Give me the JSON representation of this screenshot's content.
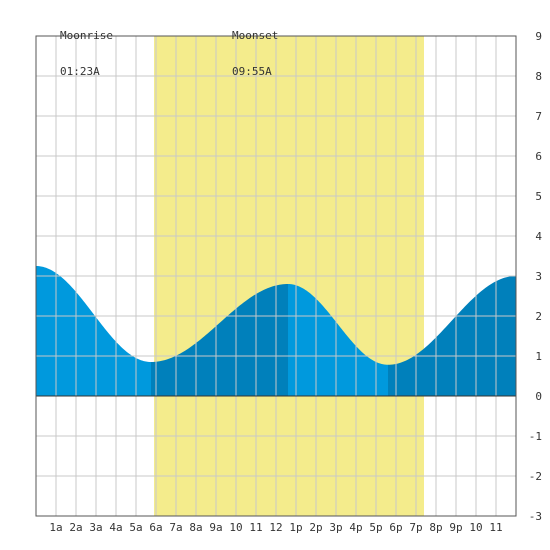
{
  "moon": {
    "rise_label": "Moonrise",
    "rise_time": "01:23A",
    "set_label": "Moonset",
    "set_time": "09:55A"
  },
  "colors": {
    "daylight": "#f4ec8c",
    "tide_light": "#0099dd",
    "tide_dark": "#0080bb",
    "grid": "#c8c8c8",
    "frame": "#555555"
  },
  "chart_data": {
    "type": "area",
    "title": "",
    "xlabel": "",
    "ylabel": "",
    "xlim": [
      0,
      24
    ],
    "ylim": [
      -3,
      9
    ],
    "grid": true,
    "x_ticks": [
      {
        "h": 1,
        "label": "1a"
      },
      {
        "h": 2,
        "label": "2a"
      },
      {
        "h": 3,
        "label": "3a"
      },
      {
        "h": 4,
        "label": "4a"
      },
      {
        "h": 5,
        "label": "5a"
      },
      {
        "h": 6,
        "label": "6a"
      },
      {
        "h": 7,
        "label": "7a"
      },
      {
        "h": 8,
        "label": "8a"
      },
      {
        "h": 9,
        "label": "9a"
      },
      {
        "h": 10,
        "label": "10"
      },
      {
        "h": 11,
        "label": "11"
      },
      {
        "h": 12,
        "label": "12"
      },
      {
        "h": 13,
        "label": "1p"
      },
      {
        "h": 14,
        "label": "2p"
      },
      {
        "h": 15,
        "label": "3p"
      },
      {
        "h": 16,
        "label": "4p"
      },
      {
        "h": 17,
        "label": "5p"
      },
      {
        "h": 18,
        "label": "6p"
      },
      {
        "h": 19,
        "label": "7p"
      },
      {
        "h": 20,
        "label": "8p"
      },
      {
        "h": 21,
        "label": "9p"
      },
      {
        "h": 22,
        "label": "10"
      },
      {
        "h": 23,
        "label": "11"
      }
    ],
    "y_ticks": [
      -3,
      -2,
      -1,
      0,
      1,
      2,
      3,
      4,
      5,
      6,
      7,
      8,
      9
    ],
    "daylight": [
      5.9,
      19.4
    ],
    "extrema": [
      {
        "h": 0.0,
        "v": 3.25
      },
      {
        "h": 5.75,
        "v": 0.85
      },
      {
        "h": 12.6,
        "v": 2.8
      },
      {
        "h": 17.6,
        "v": 0.78
      },
      {
        "h": 24.0,
        "v": 3.0
      }
    ],
    "phase_boundaries": [
      5.75,
      12.6,
      17.6
    ]
  }
}
